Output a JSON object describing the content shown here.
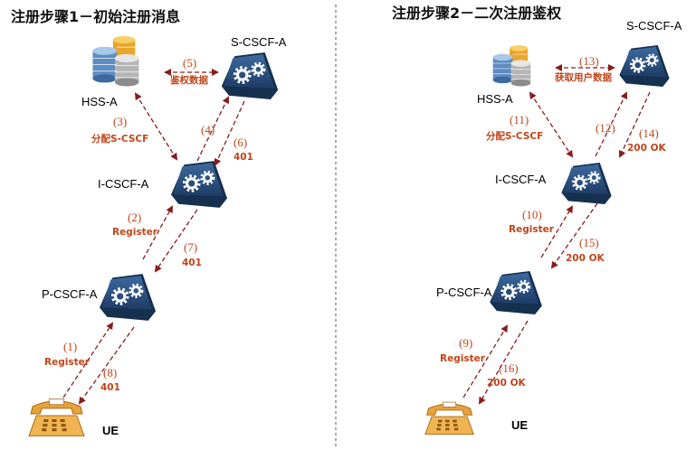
{
  "colors": {
    "arrow": "#8b1a1a",
    "label": "#c0451a",
    "router": "#2b4f7d"
  },
  "left": {
    "title": "注册步骤1－初始注册消息",
    "nodes": {
      "hss": "HSS-A",
      "scscf": "S-CSCF-A",
      "icscf": "I-CSCF-A",
      "pcscf": "P-CSCF-A",
      "ue": "UE"
    },
    "steps": [
      {
        "num": "(1)",
        "label": "Register"
      },
      {
        "num": "(2)",
        "label": "Register"
      },
      {
        "num": "(3)",
        "label": "分配S-CSCF"
      },
      {
        "num": "(4)",
        "label": ""
      },
      {
        "num": "(5)",
        "label": "鉴权数据"
      },
      {
        "num": "(6)",
        "label": "401"
      },
      {
        "num": "(7)",
        "label": "401"
      },
      {
        "num": "(8)",
        "label": "401"
      }
    ]
  },
  "right": {
    "title": "注册步骤2－二次注册鉴权",
    "nodes": {
      "hss": "HSS-A",
      "scscf": "S-CSCF-A",
      "icscf": "I-CSCF-A",
      "pcscf": "P-CSCF-A",
      "ue": "UE"
    },
    "steps": [
      {
        "num": "(9)",
        "label": "Register"
      },
      {
        "num": "(10)",
        "label": "Register"
      },
      {
        "num": "(11)",
        "label": "分配S-CSCF"
      },
      {
        "num": "(12)",
        "label": ""
      },
      {
        "num": "(13)",
        "label": "获取用户数据"
      },
      {
        "num": "(14)",
        "label": "200 OK"
      },
      {
        "num": "(15)",
        "label": "200 OK"
      },
      {
        "num": "(16)",
        "label": "200 OK"
      }
    ]
  }
}
